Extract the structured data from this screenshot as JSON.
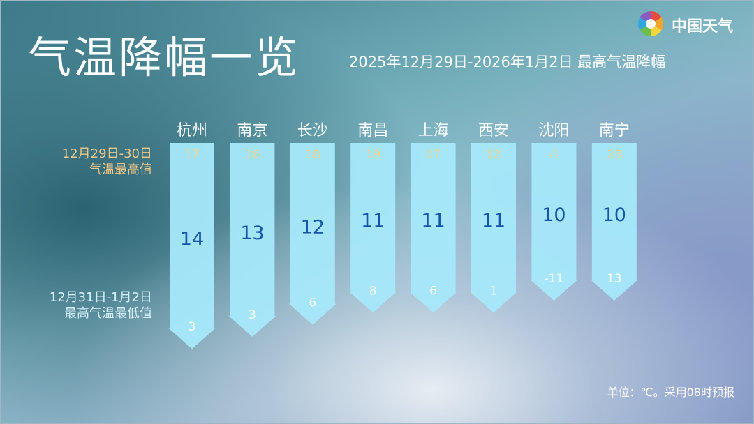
{
  "header": {
    "title": "气温降幅一览",
    "subtitle": "2025年12月29日-2026年1月2日    最高气温降幅",
    "brand": "中国天气"
  },
  "legend": {
    "high_label_line1": "12月29日-30日",
    "high_label_line2": "气温最高值",
    "low_label_line1": "12月31日-1月2日",
    "low_label_line2": "最高气温最低值"
  },
  "footnote": "单位：℃。采用08时预报",
  "colors": {
    "arrow": "#a6e8fb",
    "drop_text": "#1654a8",
    "high_text": "#f2d39a",
    "low_text": "#ffffff",
    "city_text": "#ffffff"
  },
  "chart_data": {
    "type": "bar",
    "categories": [
      "杭州",
      "南京",
      "长沙",
      "南昌",
      "上海",
      "西安",
      "沈阳",
      "南宁"
    ],
    "series": [
      {
        "name": "气温最高值",
        "values": [
          17,
          16,
          18,
          19,
          17,
          12,
          -1,
          23
        ]
      },
      {
        "name": "最高气温最低值",
        "values": [
          3,
          3,
          6,
          8,
          6,
          1,
          -11,
          13
        ]
      },
      {
        "name": "最高气温降幅",
        "values": [
          14,
          13,
          12,
          11,
          11,
          11,
          10,
          10
        ]
      }
    ],
    "unit": "℃"
  }
}
